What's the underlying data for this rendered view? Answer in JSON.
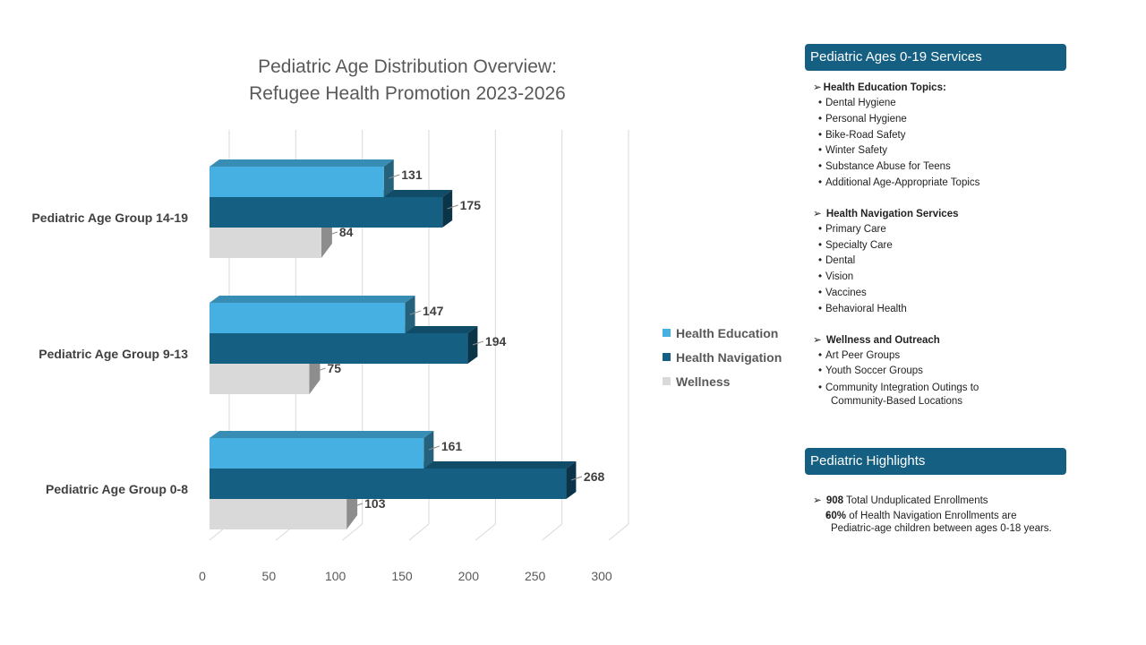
{
  "chart_data": {
    "type": "bar",
    "orientation": "horizontal",
    "title_lines": [
      "Pediatric Age Distribution Overview:",
      "Refugee Health Promotion 2023-2026"
    ],
    "categories": [
      "Pediatric Age Group 14-19",
      "Pediatric Age Group 9-13",
      "Pediatric Age Group 0-8"
    ],
    "series": [
      {
        "name": "Health Education",
        "values": [
          131,
          147,
          161
        ],
        "color": "#45b0e1"
      },
      {
        "name": "Health Navigation",
        "values": [
          175,
          194,
          268
        ],
        "color": "#145f82"
      },
      {
        "name": "Wellness",
        "values": [
          84,
          75,
          103
        ],
        "color": "#d9d9d9"
      }
    ],
    "xlim": [
      0,
      300
    ],
    "xticks": [
      "0",
      "50",
      "100",
      "150",
      "200",
      "250",
      "300"
    ],
    "grid": true,
    "legend_position": "right",
    "data_labels": true
  },
  "services_panel": {
    "header": "Pediatric Ages 0-19 Services",
    "sections": [
      {
        "title": "Health Education Topics:",
        "items": [
          "Dental Hygiene",
          "Personal Hygiene",
          "Bike-Road Safety",
          "Winter Safety",
          "Substance Abuse for Teens",
          "Additional Age-Appropriate Topics"
        ]
      },
      {
        "title": "Health Navigation Services",
        "items": [
          "Primary Care",
          "Specialty Care",
          "Dental",
          "Vision",
          "Vaccines",
          "Behavioral Health"
        ]
      },
      {
        "title": "Wellness and Outreach",
        "items": [
          "Art Peer Groups",
          "Youth Soccer Groups",
          "Community Integration Outings to Community-Based Locations"
        ]
      }
    ]
  },
  "highlights_panel": {
    "header": "Pediatric Highlights",
    "items": [
      {
        "bold": "908",
        "text": " Total Unduplicated Enrollments"
      },
      {
        "bold": "60%",
        "text": " of Health Navigation Enrollments are Pediatric-age children between ages 0-18 years."
      }
    ]
  }
}
